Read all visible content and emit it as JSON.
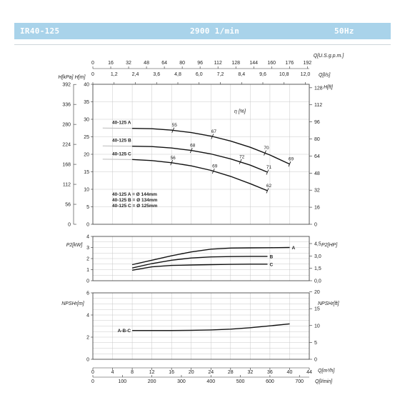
{
  "header": {
    "model": "IR40-125",
    "speed": "2900 1/min",
    "frequency": "50Hz"
  },
  "colors": {
    "banner": "#a9d3ea",
    "curve": "#111111",
    "grid": "#c8c8c8"
  },
  "chart_data": [
    {
      "type": "line",
      "name": "head",
      "ylabel_left_outer": "H[kPa]",
      "ylabel_left": "H[m]",
      "ylabel_right": "H[ft]",
      "eff_label": "η [%]",
      "ylim": [
        0,
        40
      ],
      "yticks_m": [
        "0",
        "5",
        "10",
        "15",
        "20",
        "25",
        "30",
        "35",
        "40"
      ],
      "yticks_kpa": [
        "0",
        "56",
        "112",
        "168",
        "224",
        "280",
        "336",
        "392"
      ],
      "yticks_ft": [
        "0",
        "16",
        "32",
        "48",
        "64",
        "80",
        "96",
        "112",
        "128"
      ],
      "series": [
        {
          "name": "40-125 A",
          "x": [
            8,
            12,
            16,
            20,
            24,
            28,
            32,
            36,
            40
          ],
          "y": [
            27.4,
            27.3,
            26.9,
            26.2,
            25.2,
            23.8,
            22.0,
            19.8,
            17.2
          ]
        },
        {
          "name": "40-125 B",
          "x": [
            8,
            12,
            16,
            20,
            24,
            28,
            32,
            35.5
          ],
          "y": [
            22.3,
            22.2,
            21.8,
            21.1,
            20.1,
            18.7,
            16.9,
            14.9
          ]
        },
        {
          "name": "40-125 C",
          "x": [
            8,
            12,
            16,
            20,
            24,
            28,
            32,
            35.5
          ],
          "y": [
            18.5,
            18.2,
            17.6,
            16.7,
            15.4,
            13.7,
            11.6,
            9.6
          ]
        }
      ],
      "efficiency_marks": [
        {
          "label": "55",
          "x": 16.3,
          "y": 26.9
        },
        {
          "label": "67",
          "x": 24.3,
          "y": 25.1
        },
        {
          "label": "70",
          "x": 35.0,
          "y": 20.4
        },
        {
          "label": "69",
          "x": 40.0,
          "y": 17.2
        },
        {
          "label": "68",
          "x": 20.0,
          "y": 21.1
        },
        {
          "label": "72",
          "x": 30.0,
          "y": 17.9
        },
        {
          "label": "71",
          "x": 35.5,
          "y": 14.9
        },
        {
          "label": "56",
          "x": 16.0,
          "y": 17.6
        },
        {
          "label": "69",
          "x": 24.5,
          "y": 15.2
        },
        {
          "label": "62",
          "x": 35.5,
          "y": 9.6
        }
      ],
      "impeller_notes": [
        "40-125 A = Ø 144mm",
        "40-125 B = Ø 134mm",
        "40-125 C = Ø 125mm"
      ]
    },
    {
      "type": "line",
      "name": "power",
      "ylabel_left": "P2[kW]",
      "ylabel_right": "P2[HP]",
      "ylim": [
        0,
        4
      ],
      "yticks_kw": [
        "0",
        "1",
        "2",
        "3",
        "4"
      ],
      "yticks_hp": [
        "0,0",
        "1,5",
        "3,0",
        "4,5"
      ],
      "series": [
        {
          "name": "A",
          "x": [
            8,
            12,
            16,
            20,
            24,
            28,
            32,
            36,
            40
          ],
          "y": [
            1.45,
            1.85,
            2.25,
            2.6,
            2.85,
            2.95,
            2.97,
            2.98,
            3.0
          ]
        },
        {
          "name": "B",
          "x": [
            8,
            12,
            16,
            20,
            24,
            28,
            32,
            35.5
          ],
          "y": [
            1.15,
            1.55,
            1.85,
            2.05,
            2.15,
            2.18,
            2.2,
            2.2
          ]
        },
        {
          "name": "C",
          "x": [
            8,
            12,
            16,
            20,
            24,
            28,
            32,
            35.5
          ],
          "y": [
            0.95,
            1.25,
            1.38,
            1.42,
            1.45,
            1.48,
            1.5,
            1.5
          ]
        }
      ]
    },
    {
      "type": "line",
      "name": "npsh",
      "ylabel_left": "NPSHr[m]",
      "ylabel_right": "NPSHr[ft]",
      "ylim": [
        0,
        6
      ],
      "yticks_m": [
        "0",
        "2",
        "4",
        "6"
      ],
      "yticks_ft": [
        "0",
        "5",
        "10",
        "15",
        "20"
      ],
      "series": [
        {
          "name": "A-B-C",
          "x": [
            8,
            12,
            16,
            20,
            24,
            28,
            32,
            36,
            40
          ],
          "y": [
            2.6,
            2.6,
            2.6,
            2.62,
            2.65,
            2.72,
            2.85,
            3.02,
            3.2
          ]
        }
      ]
    }
  ],
  "axes": {
    "top_label": "Q[U.S.g.p.m.]",
    "top_ticks": [
      "0",
      "16",
      "32",
      "48",
      "64",
      "80",
      "96",
      "112",
      "128",
      "144",
      "160",
      "176",
      "192"
    ],
    "ls_label": "Q[l/s]",
    "ls_ticks": [
      "0",
      "1,2",
      "2,4",
      "3,6",
      "4,8",
      "6,0",
      "7,2",
      "8,4",
      "9,6",
      "10,8",
      "12,0"
    ],
    "bottom_label": "Q[m³/h]",
    "bottom_ticks": [
      "0",
      "4",
      "8",
      "12",
      "16",
      "20",
      "24",
      "28",
      "32",
      "36",
      "40",
      "44"
    ],
    "lmin_label": "Q[l/min]",
    "lmin_ticks": [
      "0",
      "100",
      "200",
      "300",
      "400",
      "500",
      "600",
      "700"
    ],
    "xlim": [
      0,
      44
    ]
  }
}
